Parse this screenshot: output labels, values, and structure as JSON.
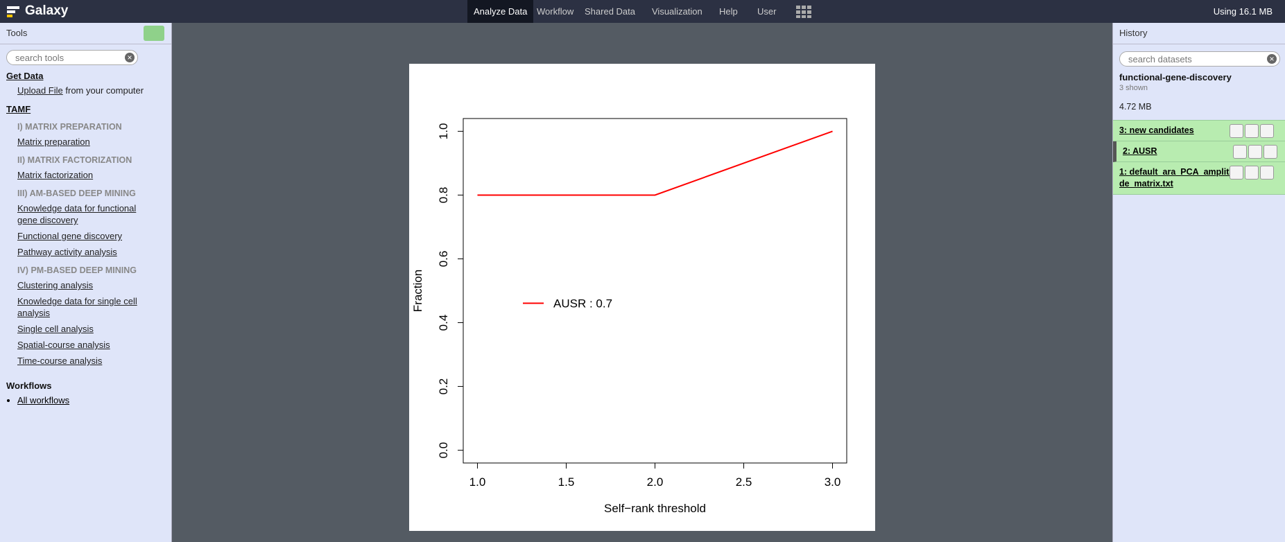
{
  "masthead": {
    "brand": "Galaxy",
    "nav": [
      "Analyze Data",
      "Workflow",
      "Shared Data",
      "Visualization",
      "Help",
      "User"
    ],
    "quota": "Using 16.1 MB"
  },
  "tools": {
    "title": "Tools",
    "search": "search tools",
    "get_data": {
      "title": "Get Data",
      "link": "Upload File",
      "suffix": "from your computer"
    },
    "tamf": {
      "title": "TAMF",
      "groups": [
        {
          "label": "I) MATRIX PREPARATION",
          "tools": [
            "Matrix preparation"
          ]
        },
        {
          "label": "II) MATRIX FACTORIZATION",
          "tools": [
            "Matrix factorization"
          ]
        },
        {
          "label": "III) AM-BASED DEEP MINING",
          "tools": [
            "Knowledge data for functional gene discovery",
            "Functional gene discovery",
            "Pathway activity analysis"
          ]
        },
        {
          "label": "IV) PM-BASED DEEP MINING",
          "tools": [
            "Clustering analysis",
            "Knowledge data for single cell analysis",
            "Single cell analysis",
            "Spatial-course analysis",
            "Time-course analysis"
          ]
        }
      ]
    },
    "workflows": {
      "title": "Workflows",
      "items": [
        "All workflows"
      ]
    }
  },
  "history": {
    "title": "History",
    "search": "search datasets",
    "name": "functional-gene-discovery",
    "shown": "3 shown",
    "size": "4.72 MB",
    "datasets": [
      "3: new candidates",
      "2: AUSR",
      "1: default_ara_PCA_amplitude_matrix.txt"
    ]
  },
  "chart_data": {
    "type": "line",
    "x_label": "Self−rank threshold",
    "y_label": "Fraction",
    "x": [
      1,
      2,
      3
    ],
    "series": [
      {
        "name": "AUSR : 0.7",
        "color": "#ff0000",
        "values": [
          0.8,
          0.8,
          1.0
        ]
      }
    ],
    "xlim": [
      0.92,
      3.08
    ],
    "xticks": [
      {
        "value": 1,
        "label": "1.0"
      },
      1.5,
      {
        "value": 2,
        "label": "2.0"
      },
      2.5,
      {
        "value": 3,
        "label": "3.0"
      }
    ],
    "ylim": [
      -0.04,
      1.04
    ],
    "yticks": [
      {
        "value": 0,
        "label": "0.0"
      },
      0.2,
      0.4,
      0.6,
      0.8,
      {
        "value": 1,
        "label": "1.0"
      }
    ],
    "legend": "center-left"
  }
}
